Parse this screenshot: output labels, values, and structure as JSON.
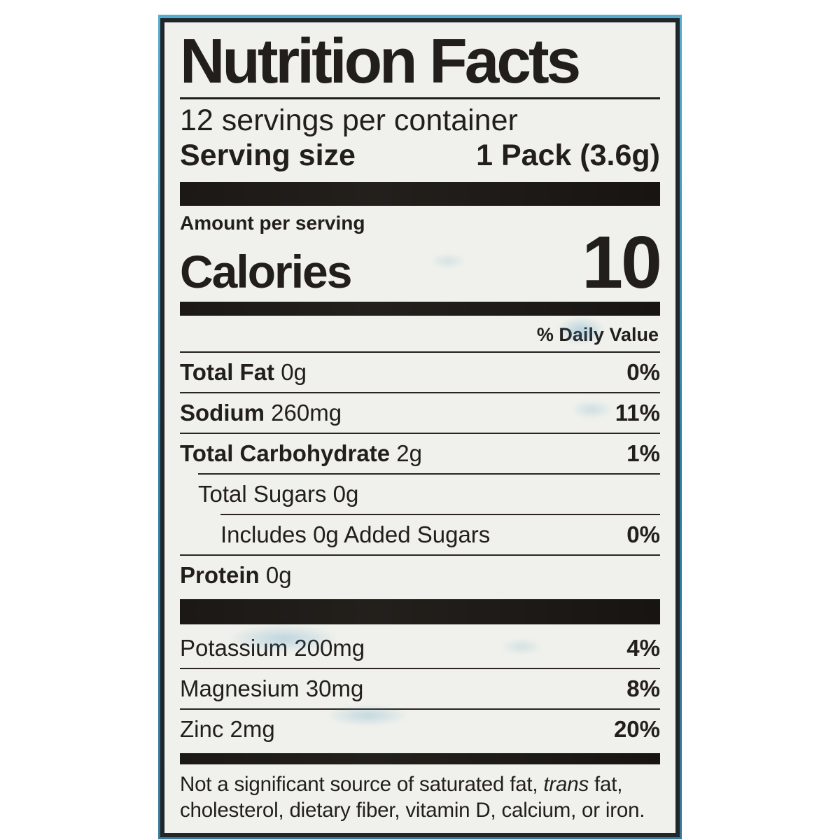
{
  "label": {
    "title": "Nutrition Facts",
    "servings_per_container": "12 servings per container",
    "serving_size_label": "Serving size",
    "serving_size_value": "1 Pack (3.6g)",
    "amount_per_serving": "Amount per serving",
    "calories_label": "Calories",
    "calories_value": "10",
    "daily_value_header": "% Daily Value",
    "rows": [
      {
        "name": "Total Fat",
        "amount": "0g",
        "dv": "0%"
      },
      {
        "name": "Sodium",
        "amount": "260mg",
        "dv": "11%"
      },
      {
        "name": "Total Carbohydrate",
        "amount": "2g",
        "dv": "1%"
      },
      {
        "name": "Total Sugars",
        "amount": "0g",
        "dv": ""
      },
      {
        "name": "Includes 0g Added Sugars",
        "amount": "",
        "dv": "0%"
      },
      {
        "name": "Protein",
        "amount": "0g",
        "dv": ""
      }
    ],
    "mineral_rows": [
      {
        "name": "Potassium",
        "amount": "200mg",
        "dv": "4%"
      },
      {
        "name": "Magnesium",
        "amount": "30mg",
        "dv": "8%"
      },
      {
        "name": "Zinc",
        "amount": "2mg",
        "dv": "20%"
      }
    ],
    "footnote": {
      "part1": "Not a significant source of saturated fat, ",
      "italic": "trans",
      "part2": " fat, cholesterol, dietary fiber, vitamin D, calcium, or iron."
    },
    "colors": {
      "paper": "#f0f1ec",
      "ink": "#221e1c",
      "bar": "#1b1815",
      "package_edge_teal": "#3f9cc2"
    }
  }
}
